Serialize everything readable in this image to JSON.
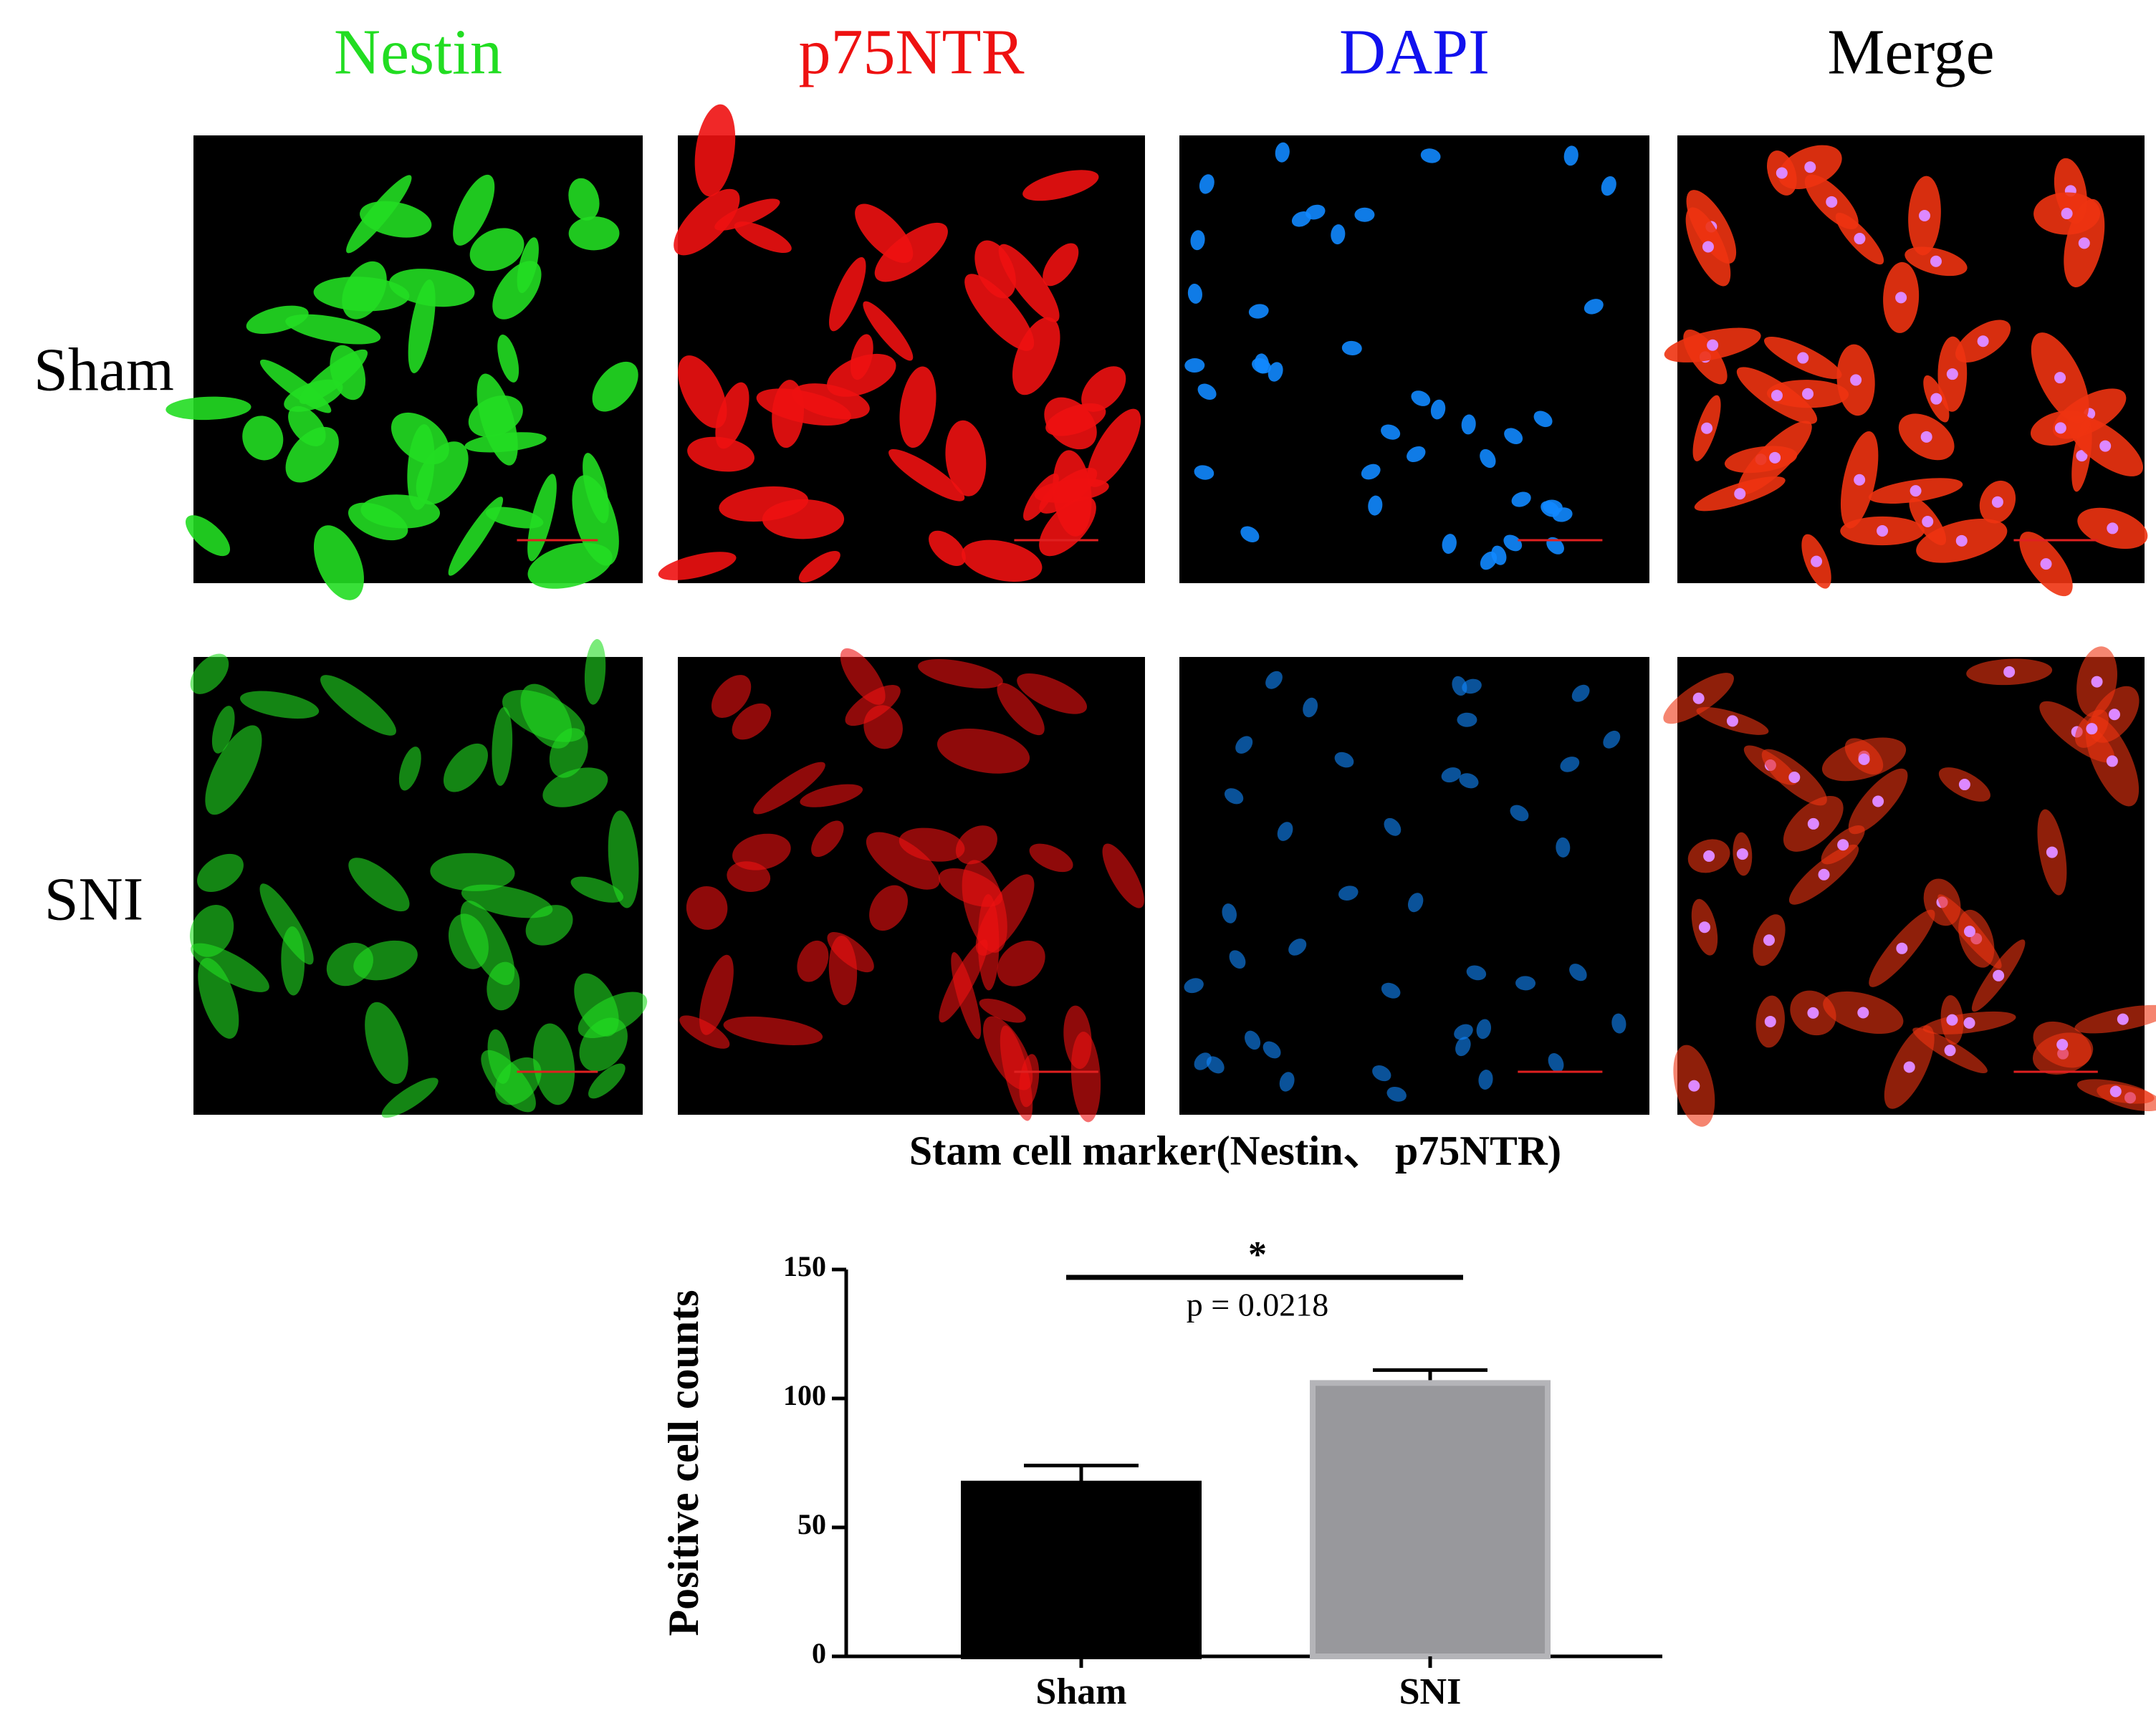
{
  "panels": {
    "columns": [
      "Nestin",
      "p75NTR",
      "DAPI",
      "Merge"
    ],
    "rows": [
      "Sham",
      "SNI"
    ],
    "caption": "Stam cell marker(Nestin、 p75NTR)"
  },
  "chart_data": {
    "type": "bar",
    "y_label": "Positive cell counts",
    "categories": [
      "Sham",
      "SNI"
    ],
    "values": [
      67,
      106
    ],
    "errors": [
      7,
      5
    ],
    "colors": [
      "#000000",
      "#98989c"
    ],
    "ylim": [
      0,
      150
    ],
    "yticks": [
      0,
      50,
      100,
      150
    ],
    "annotations": [
      "*",
      "p = 0.0218"
    ]
  }
}
